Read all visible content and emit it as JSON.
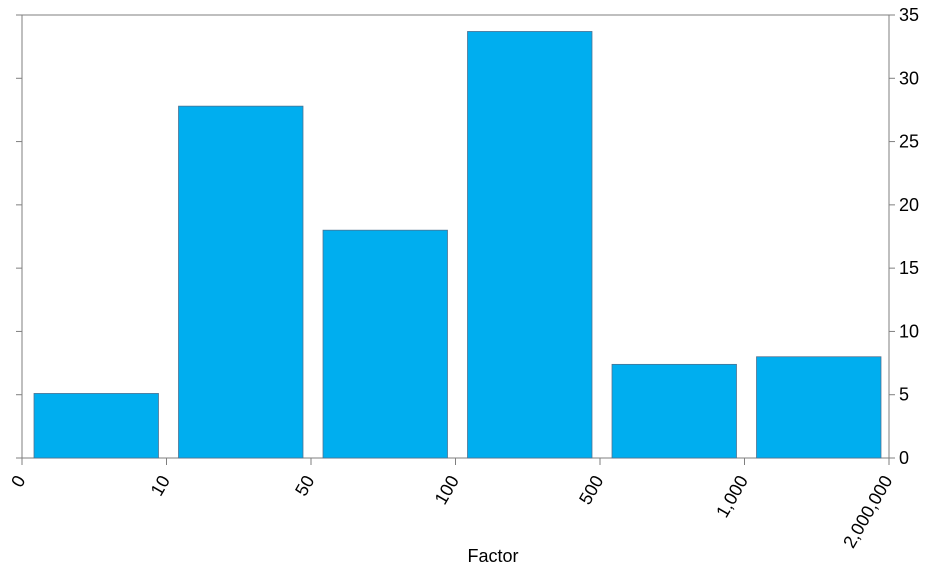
{
  "chart_data": {
    "type": "bar",
    "title": "",
    "xlabel": "Factor",
    "ylabel": "",
    "x_edge_labels": [
      "0",
      "10",
      "50",
      "100",
      "500",
      "1,000",
      "2,000,000"
    ],
    "categories": [
      "0–10",
      "10–50",
      "50–100",
      "100–500",
      "500–1,000",
      "1,000–2,000,000"
    ],
    "values": [
      5.1,
      27.8,
      18.0,
      33.7,
      7.4,
      8.0
    ],
    "ylim": [
      0,
      35
    ],
    "yticks": [
      "0",
      "5",
      "10",
      "15",
      "20",
      "25",
      "30",
      "35"
    ],
    "y_axis_position": "right",
    "grid": false,
    "legend": "none",
    "bar_color": "#00AEEF",
    "axis_color": "#7F7F7F"
  }
}
